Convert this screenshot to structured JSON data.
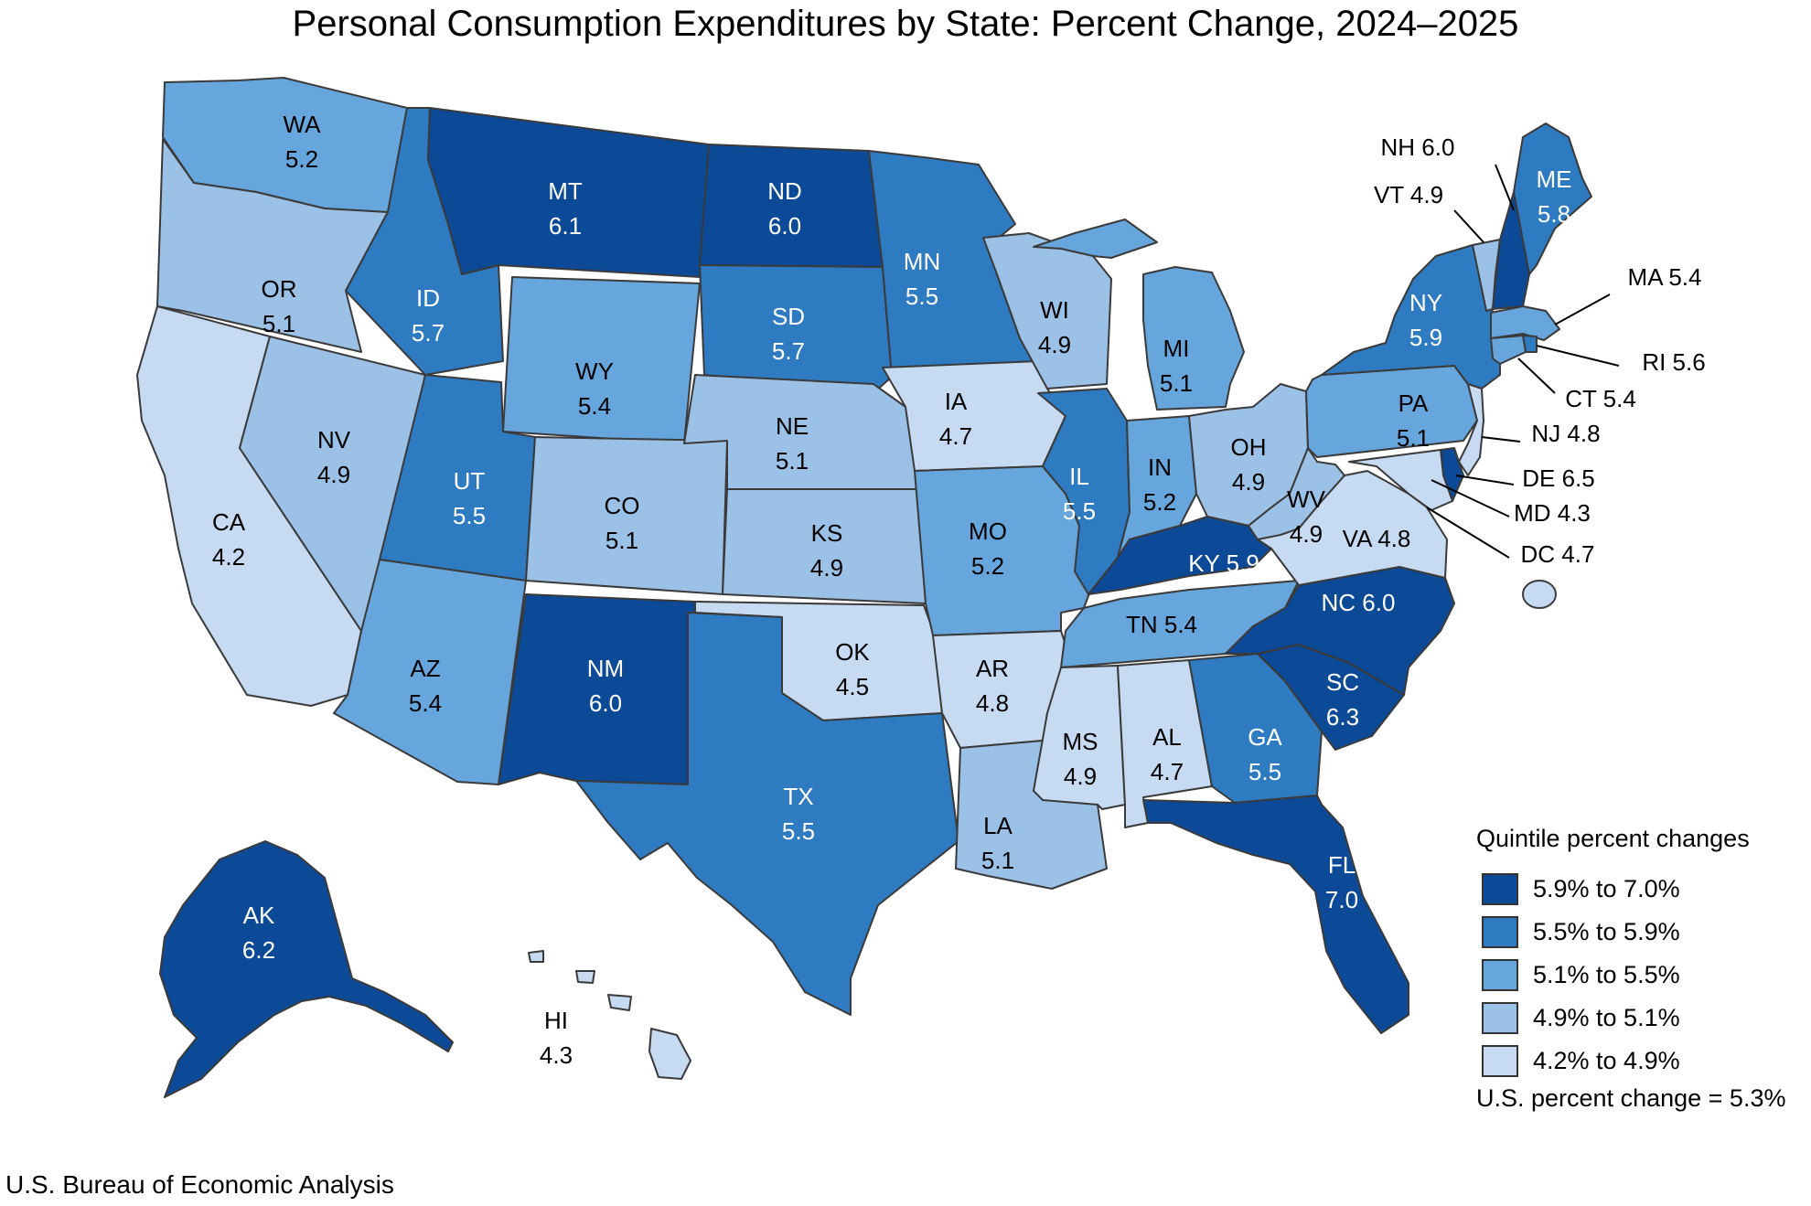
{
  "title": "Personal Consumption Expenditures by State: Percent Change, 2024–2025",
  "source": "U.S. Bureau of Economic Analysis",
  "legend": {
    "title": "Quintile percent changes",
    "bins": [
      {
        "label": "5.9% to 7.0%",
        "color": "#0c4a97"
      },
      {
        "label": "5.5% to 5.9%",
        "color": "#2e7bc1"
      },
      {
        "label": "5.1% to 5.5%",
        "color": "#67a6dc"
      },
      {
        "label": "4.9% to 5.1%",
        "color": "#9cc1e6"
      },
      {
        "label": "4.2% to 4.9%",
        "color": "#c6daf2"
      }
    ],
    "us_change": "U.S. percent change = 5.3%"
  },
  "chart_data": {
    "type": "choropleth",
    "unit": "percent change",
    "states": [
      {
        "code": "WA",
        "value": 5.2,
        "label": "WA",
        "value_label": "5.2",
        "bin": 2
      },
      {
        "code": "OR",
        "value": 5.1,
        "label": "OR",
        "value_label": "5.1",
        "bin": 3
      },
      {
        "code": "CA",
        "value": 4.2,
        "label": "CA",
        "value_label": "4.2",
        "bin": 4
      },
      {
        "code": "NV",
        "value": 4.9,
        "label": "NV",
        "value_label": "4.9",
        "bin": 3
      },
      {
        "code": "ID",
        "value": 5.7,
        "label": "ID",
        "value_label": "5.7",
        "bin": 1
      },
      {
        "code": "MT",
        "value": 6.1,
        "label": "MT",
        "value_label": "6.1",
        "bin": 0
      },
      {
        "code": "WY",
        "value": 5.4,
        "label": "WY",
        "value_label": "5.4",
        "bin": 2
      },
      {
        "code": "UT",
        "value": 5.5,
        "label": "UT",
        "value_label": "5.5",
        "bin": 1
      },
      {
        "code": "AZ",
        "value": 5.4,
        "label": "AZ",
        "value_label": "5.4",
        "bin": 2
      },
      {
        "code": "CO",
        "value": 5.1,
        "label": "CO",
        "value_label": "5.1",
        "bin": 3
      },
      {
        "code": "NM",
        "value": 6.0,
        "label": "NM",
        "value_label": "6.0",
        "bin": 0
      },
      {
        "code": "ND",
        "value": 6.0,
        "label": "ND",
        "value_label": "6.0",
        "bin": 0
      },
      {
        "code": "SD",
        "value": 5.7,
        "label": "SD",
        "value_label": "5.7",
        "bin": 1
      },
      {
        "code": "NE",
        "value": 5.1,
        "label": "NE",
        "value_label": "5.1",
        "bin": 3
      },
      {
        "code": "KS",
        "value": 4.9,
        "label": "KS",
        "value_label": "4.9",
        "bin": 3
      },
      {
        "code": "OK",
        "value": 4.5,
        "label": "OK",
        "value_label": "4.5",
        "bin": 4
      },
      {
        "code": "TX",
        "value": 5.5,
        "label": "TX",
        "value_label": "5.5",
        "bin": 1
      },
      {
        "code": "MN",
        "value": 5.5,
        "label": "MN",
        "value_label": "5.5",
        "bin": 1
      },
      {
        "code": "IA",
        "value": 4.7,
        "label": "IA",
        "value_label": "4.7",
        "bin": 4
      },
      {
        "code": "MO",
        "value": 5.2,
        "label": "MO",
        "value_label": "5.2",
        "bin": 2
      },
      {
        "code": "AR",
        "value": 4.8,
        "label": "AR",
        "value_label": "4.8",
        "bin": 4
      },
      {
        "code": "LA",
        "value": 5.1,
        "label": "LA",
        "value_label": "5.1",
        "bin": 3
      },
      {
        "code": "WI",
        "value": 4.9,
        "label": "WI",
        "value_label": "4.9",
        "bin": 3
      },
      {
        "code": "IL",
        "value": 5.5,
        "label": "IL",
        "value_label": "5.5",
        "bin": 1
      },
      {
        "code": "MI",
        "value": 5.1,
        "label": "MI",
        "value_label": "5.1",
        "bin": 2
      },
      {
        "code": "IN",
        "value": 5.2,
        "label": "IN",
        "value_label": "5.2",
        "bin": 2
      },
      {
        "code": "OH",
        "value": 4.9,
        "label": "OH",
        "value_label": "4.9",
        "bin": 3
      },
      {
        "code": "KY",
        "value": 5.9,
        "label": "KY",
        "value_label": "5.9",
        "bin": 0
      },
      {
        "code": "TN",
        "value": 5.4,
        "label": "TN",
        "value_label": "5.4",
        "bin": 2
      },
      {
        "code": "MS",
        "value": 4.9,
        "label": "MS",
        "value_label": "4.9",
        "bin": 4
      },
      {
        "code": "AL",
        "value": 4.7,
        "label": "AL",
        "value_label": "4.7",
        "bin": 4
      },
      {
        "code": "GA",
        "value": 5.5,
        "label": "GA",
        "value_label": "5.5",
        "bin": 1
      },
      {
        "code": "FL",
        "value": 7.0,
        "label": "FL",
        "value_label": "7.0",
        "bin": 0
      },
      {
        "code": "SC",
        "value": 6.3,
        "label": "SC",
        "value_label": "6.3",
        "bin": 0
      },
      {
        "code": "NC",
        "value": 6.0,
        "label": "NC",
        "value_label": "6.0",
        "bin": 0
      },
      {
        "code": "VA",
        "value": 4.8,
        "label": "VA",
        "value_label": "4.8",
        "bin": 4
      },
      {
        "code": "WV",
        "value": 4.9,
        "label": "WV",
        "value_label": "4.9",
        "bin": 3
      },
      {
        "code": "PA",
        "value": 5.1,
        "label": "PA",
        "value_label": "5.1",
        "bin": 2
      },
      {
        "code": "NY",
        "value": 5.9,
        "label": "NY",
        "value_label": "5.9",
        "bin": 1
      },
      {
        "code": "VT",
        "value": 4.9,
        "label": "VT",
        "value_label": "4.9",
        "bin": 3
      },
      {
        "code": "NH",
        "value": 6.0,
        "label": "NH",
        "value_label": "6.0",
        "bin": 0
      },
      {
        "code": "ME",
        "value": 5.8,
        "label": "ME",
        "value_label": "5.8",
        "bin": 1
      },
      {
        "code": "MA",
        "value": 5.4,
        "label": "MA",
        "value_label": "5.4",
        "bin": 2
      },
      {
        "code": "RI",
        "value": 5.6,
        "label": "RI",
        "value_label": "5.6",
        "bin": 1
      },
      {
        "code": "CT",
        "value": 5.4,
        "label": "CT",
        "value_label": "5.4",
        "bin": 2
      },
      {
        "code": "NJ",
        "value": 4.8,
        "label": "NJ",
        "value_label": "4.8",
        "bin": 4
      },
      {
        "code": "DE",
        "value": 6.5,
        "label": "DE",
        "value_label": "6.5",
        "bin": 0
      },
      {
        "code": "MD",
        "value": 4.3,
        "label": "MD",
        "value_label": "4.3",
        "bin": 4
      },
      {
        "code": "DC",
        "value": 4.7,
        "label": "DC",
        "value_label": "4.7",
        "bin": 4
      },
      {
        "code": "AK",
        "value": 6.2,
        "label": "AK",
        "value_label": "6.2",
        "bin": 0
      },
      {
        "code": "HI",
        "value": 4.3,
        "label": "HI",
        "value_label": "4.3",
        "bin": 4
      }
    ]
  }
}
